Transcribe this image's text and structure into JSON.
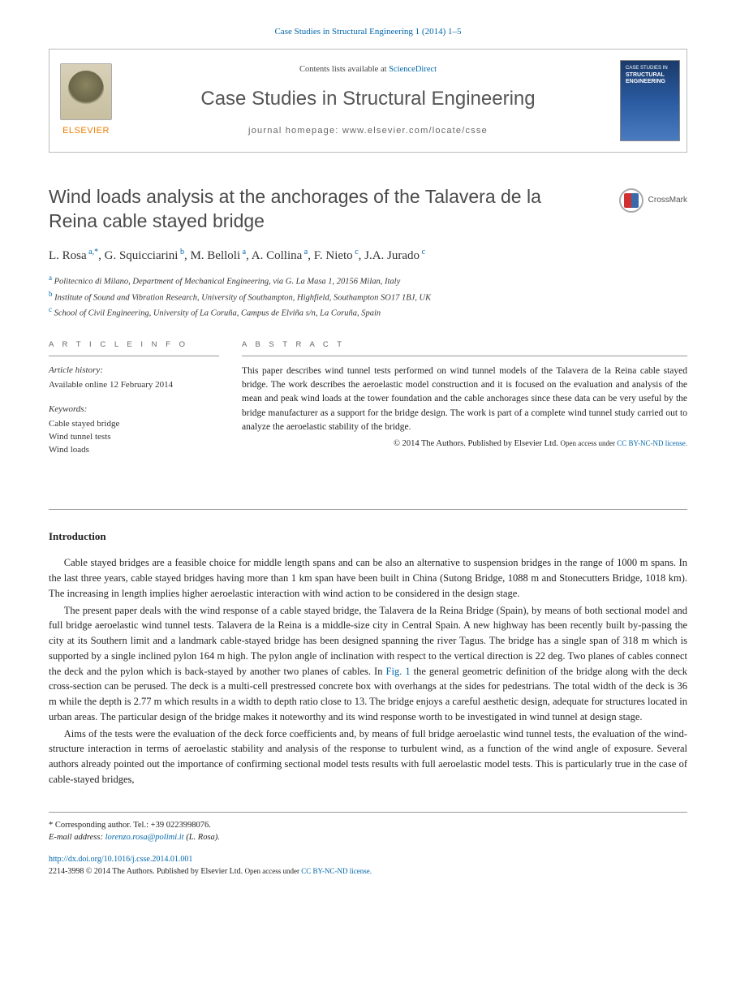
{
  "citation": "Case Studies in Structural Engineering 1 (2014) 1–5",
  "header": {
    "contents_prefix": "Contents lists available at ",
    "contents_link": "ScienceDirect",
    "journal": "Case Studies in Structural Engineering",
    "homepage_prefix": "journal homepage: ",
    "homepage_url": "www.elsevier.com/locate/csse",
    "publisher": "ELSEVIER",
    "cover_line1": "CASE STUDIES IN",
    "cover_line2": "STRUCTURAL ENGINEERING"
  },
  "crossmark": "CrossMark",
  "title": "Wind loads analysis at the anchorages of the Talavera de la Reina cable stayed bridge",
  "authors_html": "L. Rosa|a,*|, G. Squicciarini|b|, M. Belloli|a|, A. Collina|a|, F. Nieto|c|, J.A. Jurado|c|",
  "authors": [
    {
      "name": "L. Rosa",
      "sup": "a,*"
    },
    {
      "name": "G. Squicciarini",
      "sup": "b"
    },
    {
      "name": "M. Belloli",
      "sup": "a"
    },
    {
      "name": "A. Collina",
      "sup": "a"
    },
    {
      "name": "F. Nieto",
      "sup": "c"
    },
    {
      "name": "J.A. Jurado",
      "sup": "c"
    }
  ],
  "affiliations": [
    {
      "sup": "a",
      "text": "Politecnico di Milano, Department of Mechanical Engineering, via G. La Masa 1, 20156 Milan, Italy"
    },
    {
      "sup": "b",
      "text": "Institute of Sound and Vibration Research, University of Southampton, Highfield, Southampton SO17 1BJ, UK"
    },
    {
      "sup": "c",
      "text": "School of Civil Engineering, University of La Coruña, Campus de Elviña s/n, La Coruña, Spain"
    }
  ],
  "article_info": {
    "label": "A R T I C L E   I N F O",
    "history_heading": "Article history:",
    "history_text": "Available online 12 February 2014",
    "keywords_heading": "Keywords:",
    "keywords": [
      "Cable stayed bridge",
      "Wind tunnel tests",
      "Wind loads"
    ]
  },
  "abstract": {
    "label": "A B S T R A C T",
    "text": "This paper describes wind tunnel tests performed on wind tunnel models of the Talavera de la Reina cable stayed bridge. The work describes the aeroelastic model construction and it is focused on the evaluation and analysis of the mean and peak wind loads at the tower foundation and the cable anchorages since these data can be very useful by the bridge manufacturer as a support for the bridge design. The work is part of a complete wind tunnel study carried out to analyze the aeroelastic stability of the bridge.",
    "copyright": "© 2014 The Authors. Published by Elsevier Ltd.",
    "openaccess_prefix": "Open access under ",
    "license_link": "CC BY-NC-ND license."
  },
  "intro": {
    "heading": "Introduction",
    "p1": "Cable stayed bridges are a feasible choice for middle length spans and can be also an alternative to suspension bridges in the range of 1000 m spans. In the last three years, cable stayed bridges having more than 1 km span have been built in China (Sutong Bridge, 1088 m and Stonecutters Bridge, 1018 km). The increasing in length implies higher aeroelastic interaction with wind action to be considered in the design stage.",
    "p2a": "The present paper deals with the wind response of a cable stayed bridge, the Talavera de la Reina Bridge (Spain), by means of both sectional model and full bridge aeroelastic wind tunnel tests. Talavera de la Reina is a middle-size city in Central Spain. A new highway has been recently built by-passing the city at its Southern limit and a landmark cable-stayed bridge has been designed spanning the river Tagus. The bridge has a single span of 318 m which is supported by a single inclined pylon 164 m high. The pylon angle of inclination with respect to the vertical direction is 22 deg. Two planes of cables connect the deck and the pylon which is back-stayed by another two planes of cables. In ",
    "fig1": "Fig. 1",
    "p2b": " the general geometric definition of the bridge along with the deck cross-section can be perused. The deck is a multi-cell prestressed concrete box with overhangs at the sides for pedestrians. The total width of the deck is 36 m while the depth is 2.77 m which results in a width to depth ratio close to 13. The bridge enjoys a careful aesthetic design, adequate for structures located in urban areas. The particular design of the bridge makes it noteworthy and its wind response worth to be investigated in wind tunnel at design stage.",
    "p3": "Aims of the tests were the evaluation of the deck force coefficients and, by means of full bridge aeroelastic wind tunnel tests, the evaluation of the wind-structure interaction in terms of aeroelastic stability and analysis of the response to turbulent wind, as a function of the wind angle of exposure. Several authors already pointed out the importance of confirming sectional model tests results with full aeroelastic model tests. This is particularly true in the case of cable-stayed bridges,"
  },
  "footer": {
    "corr_label": "* Corresponding author. Tel.: +39 0223998076.",
    "email_label": "E-mail address: ",
    "email": "lorenzo.rosa@polimi.it",
    "email_suffix": " (L. Rosa).",
    "doi": "http://dx.doi.org/10.1016/j.csse.2014.01.001",
    "issn_line": "2214-3998 © 2014 The Authors. Published by Elsevier Ltd.",
    "openaccess_prefix": "Open access under ",
    "license_link": "CC BY-NC-ND license."
  },
  "colors": {
    "link": "#0066aa",
    "orange": "#ee7d00",
    "text": "#222222",
    "muted": "#666666",
    "rule": "#999999"
  }
}
